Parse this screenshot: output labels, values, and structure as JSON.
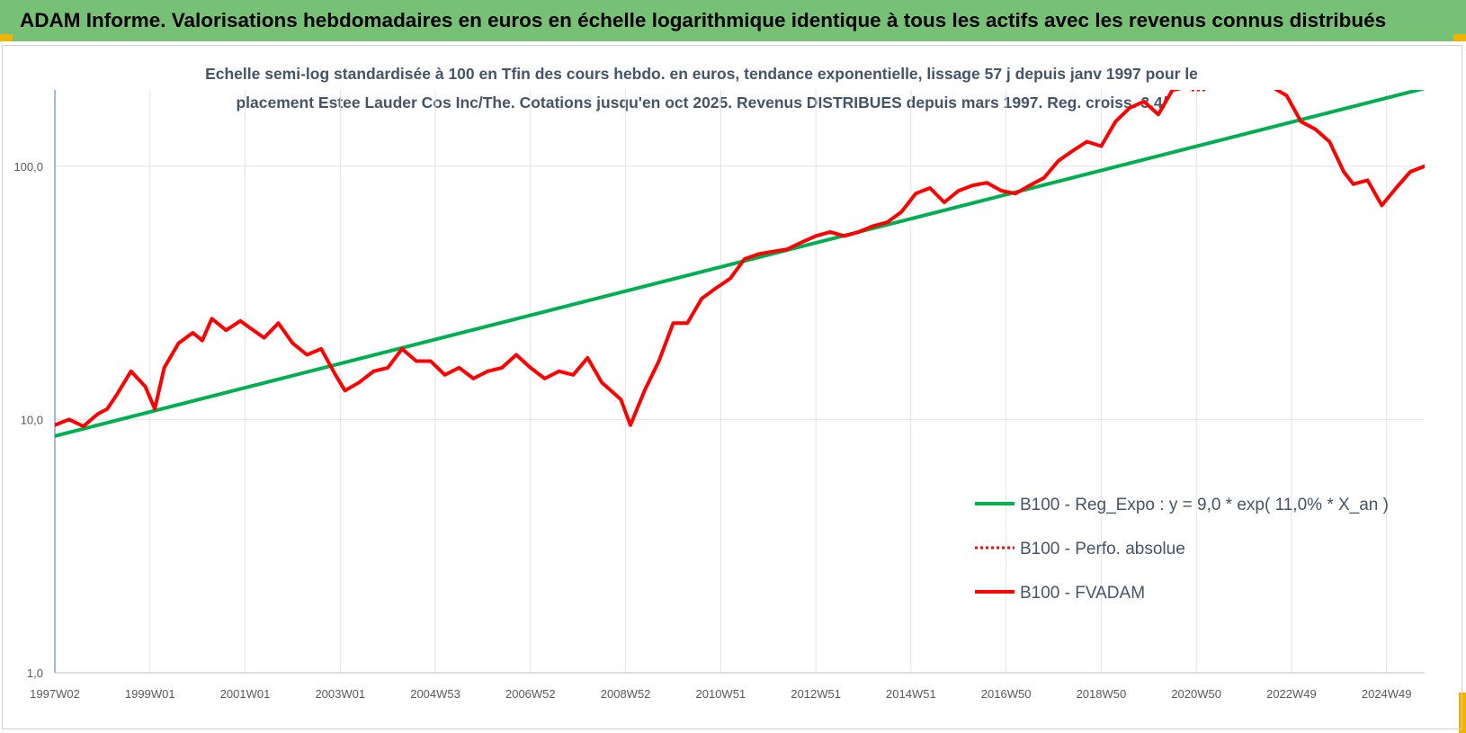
{
  "title": "ADAM Informe. Valorisations hebdomadaires en euros en échelle logarithmique identique à tous les actifs avec les revenus connus distribués",
  "chart_data": {
    "type": "line",
    "subtitle_line1": "Echelle semi-log standardisée à 100 en Tfin des cours hebdo. en euros, tendance exponentielle, lissage 57 j depuis janv 1997 pour le",
    "subtitle_line2": "placement Estee Lauder Cos Inc/The. Cotations jusqu'en oct 2025. Revenus DISTRIBUES depuis mars 1997. Reg. croiss. 3,4/",
    "y_scale": "log",
    "ylim": [
      1,
      200
    ],
    "y_ticks": [
      "1,0",
      "10,0",
      "100,0"
    ],
    "y_tick_values": [
      1,
      10,
      100
    ],
    "x_range": [
      1997.0,
      2025.8
    ],
    "x_tick_labels": [
      "1997W02",
      "1999W01",
      "2001W01",
      "2003W01",
      "2004W53",
      "2006W52",
      "2008W52",
      "2010W51",
      "2012W51",
      "2014W51",
      "2016W50",
      "2018W50",
      "2020W50",
      "2022W49",
      "2024W49"
    ],
    "x_tick_values": [
      1997.0,
      1999.0,
      2001.0,
      2003.0,
      2005.0,
      2007.0,
      2009.0,
      2011.0,
      2013.0,
      2015.0,
      2017.0,
      2019.0,
      2021.0,
      2023.0,
      2025.0
    ],
    "grid": "vertical",
    "legend_position": "bottom-right",
    "series": [
      {
        "name": "B100 - Reg_Expo : y = 9,0 * exp( 11,0% *  X_an )",
        "color": "#00b050",
        "style": "solid",
        "x": [
          1997.0,
          2025.8
        ],
        "values": [
          8.6,
          203
        ]
      },
      {
        "name": "B100 - Perfo. absolue",
        "color": "#ff0000",
        "style": "dotted",
        "x": [
          2020.9,
          2021.2
        ],
        "values": [
          200,
          200
        ]
      },
      {
        "name": "B100 - FVADAM",
        "color": "#ff0000",
        "style": "solid",
        "x": [
          1997.0,
          1997.3,
          1997.6,
          1997.9,
          1998.1,
          1998.3,
          1998.6,
          1998.9,
          1999.1,
          1999.3,
          1999.6,
          1999.9,
          2000.1,
          2000.3,
          2000.6,
          2000.9,
          2001.1,
          2001.4,
          2001.7,
          2002.0,
          2002.3,
          2002.6,
          2002.9,
          2003.1,
          2003.4,
          2003.7,
          2004.0,
          2004.3,
          2004.6,
          2004.9,
          2005.2,
          2005.5,
          2005.8,
          2006.1,
          2006.4,
          2006.7,
          2007.0,
          2007.3,
          2007.6,
          2007.9,
          2008.2,
          2008.5,
          2008.9,
          2009.1,
          2009.4,
          2009.7,
          2010.0,
          2010.3,
          2010.6,
          2010.9,
          2011.2,
          2011.5,
          2011.8,
          2012.1,
          2012.4,
          2012.7,
          2013.0,
          2013.3,
          2013.6,
          2013.9,
          2014.2,
          2014.5,
          2014.8,
          2015.1,
          2015.4,
          2015.7,
          2016.0,
          2016.3,
          2016.6,
          2016.9,
          2017.2,
          2017.5,
          2017.8,
          2018.1,
          2018.4,
          2018.7,
          2019.0,
          2019.3,
          2019.6,
          2019.9,
          2020.2,
          2020.5,
          2020.8,
          2021.1,
          2021.4,
          2021.7,
          2022.0,
          2022.3,
          2022.6,
          2022.9,
          2023.2,
          2023.5,
          2023.8,
          2024.1,
          2024.3,
          2024.6,
          2024.9,
          2025.2,
          2025.5,
          2025.8
        ],
        "values": [
          9.5,
          10.0,
          9.4,
          10.5,
          11.0,
          12.5,
          15.5,
          13.5,
          11.0,
          16.0,
          20.0,
          22.0,
          20.5,
          25.0,
          22.5,
          24.5,
          23.0,
          21.0,
          24.0,
          20.0,
          18.0,
          19.0,
          15.0,
          13.0,
          14.0,
          15.5,
          16.0,
          19.0,
          17.0,
          17.0,
          15.0,
          16.0,
          14.5,
          15.5,
          16.0,
          18.0,
          16.0,
          14.5,
          15.5,
          15.0,
          17.5,
          14.0,
          12.0,
          9.5,
          13.0,
          17.0,
          24.0,
          24.0,
          30.0,
          33.0,
          36.0,
          43.0,
          45.0,
          46.0,
          47.0,
          50.0,
          53.0,
          55.0,
          53.0,
          55.0,
          58.0,
          60.0,
          66.0,
          78.0,
          82.0,
          72.0,
          80.0,
          84.0,
          86.0,
          80.0,
          78.0,
          84.0,
          90.0,
          105.0,
          115.0,
          125.0,
          120.0,
          150.0,
          170.0,
          180.0,
          160.0,
          200.0,
          205.0,
          205.0,
          205.0,
          205.0,
          205.0,
          205.0,
          205.0,
          190.0,
          150.0,
          140.0,
          125.0,
          95.0,
          85.0,
          88.0,
          70.0,
          82.0,
          95.0,
          100.0
        ]
      }
    ]
  }
}
